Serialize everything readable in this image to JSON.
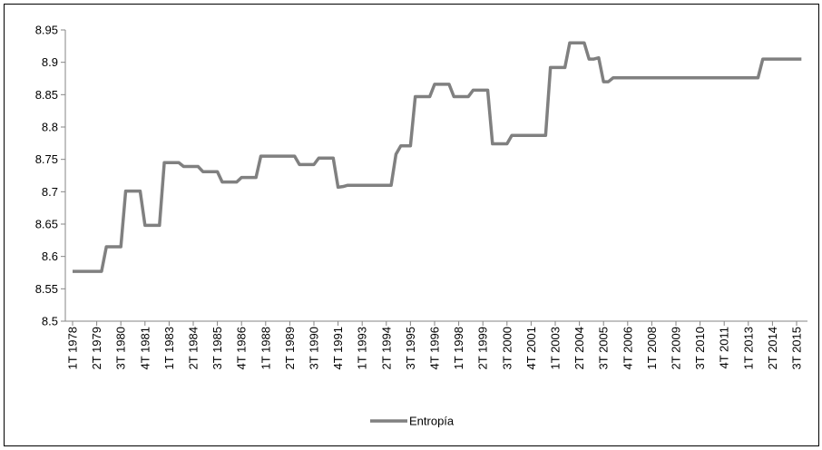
{
  "chart_data": {
    "type": "line",
    "categories": [
      "1T 1978",
      null,
      null,
      null,
      null,
      "2T 1979",
      null,
      null,
      null,
      null,
      "3T 1980",
      null,
      null,
      null,
      null,
      "4T 1981",
      null,
      null,
      null,
      null,
      "1T 1983",
      null,
      null,
      null,
      null,
      "2T 1984",
      null,
      null,
      null,
      null,
      "3T 1985",
      null,
      null,
      null,
      null,
      "4T 1986",
      null,
      null,
      null,
      null,
      "1T 1988",
      null,
      null,
      null,
      null,
      "2T 1989",
      null,
      null,
      null,
      null,
      "3T 1990",
      null,
      null,
      null,
      null,
      "4T 1991",
      null,
      null,
      null,
      null,
      "1T 1993",
      null,
      null,
      null,
      null,
      "2T 1994",
      null,
      null,
      null,
      null,
      "3T 1995",
      null,
      null,
      null,
      null,
      "4T 1996",
      null,
      null,
      null,
      null,
      "1T 1998",
      null,
      null,
      null,
      null,
      "2T 1999",
      null,
      null,
      null,
      null,
      "3T 2000",
      null,
      null,
      null,
      null,
      "4T 2001",
      null,
      null,
      null,
      null,
      "1T 2003",
      null,
      null,
      null,
      null,
      "2T 2004",
      null,
      null,
      null,
      null,
      "3T 2005",
      null,
      null,
      null,
      null,
      "4T 2006",
      null,
      null,
      null,
      null,
      "1T 2008",
      null,
      null,
      null,
      null,
      "2T 2009",
      null,
      null,
      null,
      null,
      "3T 2010",
      null,
      null,
      null,
      null,
      "4T 2011",
      null,
      null,
      null,
      null,
      "1T 2013",
      null,
      null,
      null,
      null,
      "2T 2014",
      null,
      null,
      null,
      null,
      "3T 2015",
      null
    ],
    "series": [
      {
        "name": "Entropía",
        "color": "#808080",
        "values": [
          8.577,
          8.577,
          8.577,
          8.577,
          8.577,
          8.577,
          8.577,
          8.615,
          8.615,
          8.615,
          8.615,
          8.701,
          8.701,
          8.701,
          8.701,
          8.648,
          8.648,
          8.648,
          8.648,
          8.745,
          8.745,
          8.745,
          8.745,
          8.739,
          8.739,
          8.739,
          8.739,
          8.731,
          8.731,
          8.731,
          8.731,
          8.715,
          8.715,
          8.715,
          8.715,
          8.722,
          8.722,
          8.722,
          8.722,
          8.755,
          8.755,
          8.755,
          8.755,
          8.755,
          8.755,
          8.755,
          8.755,
          8.742,
          8.742,
          8.742,
          8.742,
          8.752,
          8.752,
          8.752,
          8.752,
          8.707,
          8.708,
          8.71,
          8.71,
          8.71,
          8.71,
          8.71,
          8.71,
          8.71,
          8.71,
          8.71,
          8.71,
          8.758,
          8.771,
          8.771,
          8.771,
          8.847,
          8.847,
          8.847,
          8.847,
          8.866,
          8.866,
          8.866,
          8.866,
          8.847,
          8.847,
          8.847,
          8.847,
          8.857,
          8.857,
          8.857,
          8.857,
          8.774,
          8.774,
          8.774,
          8.774,
          8.787,
          8.787,
          8.787,
          8.787,
          8.787,
          8.787,
          8.787,
          8.787,
          8.892,
          8.892,
          8.892,
          8.892,
          8.93,
          8.93,
          8.93,
          8.93,
          8.905,
          8.905,
          8.907,
          8.87,
          8.87,
          8.876,
          8.876,
          8.876,
          8.876,
          8.876,
          8.876,
          8.876,
          8.876,
          8.876,
          8.876,
          8.876,
          8.876,
          8.876,
          8.876,
          8.876,
          8.876,
          8.876,
          8.876,
          8.876,
          8.876,
          8.876,
          8.876,
          8.876,
          8.876,
          8.876,
          8.876,
          8.876,
          8.876,
          8.876,
          8.876,
          8.876,
          8.905,
          8.905,
          8.905,
          8.905,
          8.905,
          8.905,
          8.905,
          8.905,
          8.905
        ]
      }
    ],
    "ylim": [
      8.5,
      8.95
    ],
    "yticks": [
      8.5,
      8.55,
      8.6,
      8.65,
      8.7,
      8.75,
      8.8,
      8.85,
      8.9,
      8.95
    ],
    "grid": false,
    "legend": "bottom"
  }
}
